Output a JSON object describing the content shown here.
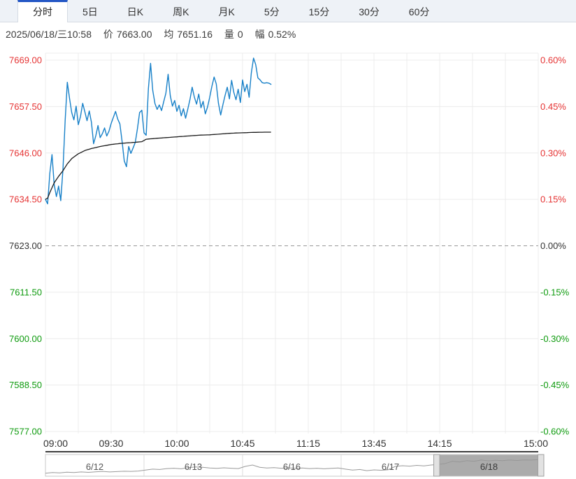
{
  "tabs": {
    "items": [
      {
        "label": "分时",
        "active": true
      },
      {
        "label": "5日",
        "active": false
      },
      {
        "label": "日K",
        "active": false
      },
      {
        "label": "周K",
        "active": false
      },
      {
        "label": "月K",
        "active": false
      },
      {
        "label": "5分",
        "active": false
      },
      {
        "label": "15分",
        "active": false
      },
      {
        "label": "30分",
        "active": false
      },
      {
        "label": "60分",
        "active": false
      }
    ]
  },
  "info_bar": {
    "datetime": "2025/06/18/三10:58",
    "price_label": "价",
    "price": "7663.00",
    "avg_label": "均",
    "avg": "7651.16",
    "volume_label": "量",
    "volume": "0",
    "change_label": "幅",
    "change": "0.52%"
  },
  "colors": {
    "up": "#e53333",
    "down": "#0f9b0f",
    "neutral": "#333333",
    "price_line": "#1780c8",
    "avg_line": "#1a1a1a",
    "gridline": "#ececec",
    "zero_line": "#999999",
    "active_tab_border": "#2457c5",
    "nav_line": "#9a9a9a",
    "nav_selection": "#969696"
  },
  "chart_data": {
    "type": "line",
    "title": "分时 intraday price chart 2025/06/18",
    "x_axis": {
      "labels": [
        "09:00",
        "09:30",
        "10:00",
        "10:45",
        "11:15",
        "13:45",
        "14:15",
        "15:00"
      ],
      "positions": [
        0,
        0.1333,
        0.2667,
        0.4,
        0.5333,
        0.6667,
        0.8,
        1
      ],
      "total_minutes": 225,
      "gridline_count": 16
    },
    "y_axis_left": {
      "labels": [
        "7669.00",
        "7657.50",
        "7646.00",
        "7634.50",
        "7623.00",
        "7611.50",
        "7600.00",
        "7588.50",
        "7577.00"
      ],
      "colors": [
        "#e53333",
        "#e53333",
        "#e53333",
        "#e53333",
        "#333333",
        "#0f9b0f",
        "#0f9b0f",
        "#0f9b0f",
        "#0f9b0f"
      ]
    },
    "y_axis_right": {
      "labels": [
        "0.60%",
        "0.45%",
        "0.30%",
        "0.15%",
        "0.00%",
        "-0.15%",
        "-0.30%",
        "-0.45%",
        "-0.60%"
      ],
      "colors": [
        "#e53333",
        "#e53333",
        "#e53333",
        "#e53333",
        "#333333",
        "#0f9b0f",
        "#0f9b0f",
        "#0f9b0f",
        "#0f9b0f"
      ]
    },
    "y_range": {
      "top": 7669.0,
      "bottom": 7577.0,
      "base": 7623.0,
      "step": 11.5
    },
    "series": [
      {
        "name": "price",
        "color": "#1780c8",
        "values": [
          7634.5,
          7633.4,
          7641.0,
          7645.6,
          7638.2,
          7635.2,
          7637.8,
          7634.2,
          7642.0,
          7654.0,
          7663.5,
          7659.5,
          7656.0,
          7654.2,
          7657.6,
          7653.0,
          7655.0,
          7658.3,
          7656.2,
          7654.0,
          7656.4,
          7653.6,
          7648.3,
          7650.3,
          7652.8,
          7649.8,
          7650.8,
          7652.2,
          7650.2,
          7651.4,
          7653.3,
          7654.8,
          7656.3,
          7654.4,
          7653.2,
          7648.8,
          7644.0,
          7642.6,
          7647.6,
          7645.9,
          7647.2,
          7648.6,
          7652.0,
          7656.0,
          7656.6,
          7651.0,
          7650.4,
          7662.0,
          7668.2,
          7661.5,
          7658.2,
          7656.8,
          7657.9,
          7656.5,
          7658.7,
          7660.8,
          7665.5,
          7660.2,
          7657.6,
          7659.0,
          7656.3,
          7657.8,
          7655.2,
          7657.0,
          7654.6,
          7656.9,
          7659.3,
          7662.3,
          7659.8,
          7658.1,
          7660.6,
          7657.2,
          7658.8,
          7655.7,
          7657.4,
          7659.8,
          7662.5,
          7664.8,
          7663.1,
          7658.3,
          7655.4,
          7657.9,
          7660.2,
          7662.3,
          7659.4,
          7664.0,
          7661.0,
          7659.2,
          7661.8,
          7658.5,
          7664.1,
          7661.2,
          7663.0,
          7659.8,
          7665.8,
          7669.5,
          7667.9,
          7664.6,
          7664.1,
          7663.4,
          7663.3,
          7663.4,
          7663.3,
          7663.0
        ]
      },
      {
        "name": "average",
        "color": "#1a1a1a",
        "points": [
          [
            0,
            7634.5
          ],
          [
            1,
            7634.8
          ],
          [
            2,
            7636.2
          ],
          [
            4,
            7638.6
          ],
          [
            6,
            7640.2
          ],
          [
            8,
            7641.6
          ],
          [
            10,
            7643.3
          ],
          [
            12,
            7644.6
          ],
          [
            15,
            7645.8
          ],
          [
            18,
            7646.6
          ],
          [
            21,
            7647.1
          ],
          [
            25,
            7647.6
          ],
          [
            30,
            7648.1
          ],
          [
            35,
            7648.4
          ],
          [
            40,
            7648.6
          ],
          [
            44,
            7648.8
          ],
          [
            46,
            7649.4
          ],
          [
            50,
            7649.6
          ],
          [
            55,
            7649.8
          ],
          [
            60,
            7650.0
          ],
          [
            65,
            7650.2
          ],
          [
            70,
            7650.4
          ],
          [
            75,
            7650.5
          ],
          [
            80,
            7650.7
          ],
          [
            85,
            7650.9
          ],
          [
            90,
            7651.0
          ],
          [
            95,
            7651.1
          ],
          [
            100,
            7651.15
          ],
          [
            103,
            7651.16
          ]
        ]
      }
    ],
    "navigator": {
      "dates": [
        "6/12",
        "6/13",
        "6/16",
        "6/17",
        "6/18"
      ],
      "selected": "6/18",
      "values": [
        0.08,
        0.12,
        0.1,
        0.14,
        0.12,
        0.15,
        0.13,
        0.16,
        0.18,
        0.15,
        0.17,
        0.19,
        0.18,
        0.2,
        0.25,
        0.3,
        0.28,
        0.33,
        0.35,
        0.32,
        0.38,
        0.42,
        0.4,
        0.36,
        0.34,
        0.37,
        0.35,
        0.33,
        0.45,
        0.52,
        0.4,
        0.36,
        0.38,
        0.35,
        0.37,
        0.34,
        0.36,
        0.33,
        0.35,
        0.32,
        0.34,
        0.36,
        0.3,
        0.25,
        0.28,
        0.22,
        0.26,
        0.24,
        0.27,
        0.45,
        0.48,
        0.46,
        0.5,
        0.47,
        0.52,
        0.55,
        0.6,
        0.72,
        0.68,
        0.75,
        0.72,
        0.78,
        0.74,
        0.77,
        0.75,
        0.78,
        0.76,
        0.79,
        0.78,
        0.8
      ]
    }
  }
}
